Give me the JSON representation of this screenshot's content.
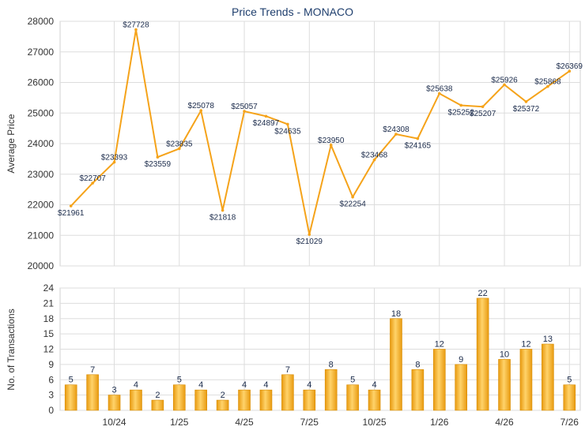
{
  "chart_data": [
    {
      "type": "line",
      "title": "Price Trends - MONACO",
      "ylabel": "Average Price",
      "ylim": [
        20000,
        28000
      ],
      "yticks": [
        20000,
        21000,
        22000,
        23000,
        24000,
        25000,
        26000,
        27000,
        28000
      ],
      "line_color": "#f5a31a",
      "values": [
        21961,
        22707,
        23393,
        27728,
        23559,
        23835,
        25078,
        21818,
        25057,
        24897,
        24635,
        21029,
        23950,
        22254,
        23468,
        24308,
        24165,
        25638,
        25252,
        25207,
        25926,
        25372,
        25868,
        26369
      ],
      "value_labels": [
        "$21961",
        "$22707",
        "$23393",
        "$27728",
        "$23559",
        "$23835",
        "$25078",
        "$21818",
        "$25057",
        "$24897",
        "$24635",
        "$21029",
        "$23950",
        "$22254",
        "$23468",
        "$24308",
        "$24165",
        "$25638",
        "$25252",
        "$25207",
        "$25926",
        "$25372",
        "$25868",
        "$26369"
      ]
    },
    {
      "type": "bar",
      "ylabel": "No. of Transactions",
      "ylim": [
        0,
        24
      ],
      "yticks": [
        0,
        3,
        6,
        9,
        12,
        15,
        18,
        21,
        24
      ],
      "bar_color": "#f5b020",
      "values": [
        5,
        7,
        3,
        4,
        2,
        5,
        4,
        2,
        4,
        4,
        7,
        4,
        8,
        5,
        4,
        18,
        8,
        12,
        9,
        22,
        10,
        12,
        13,
        5
      ],
      "x_tick_labels": [
        "10/24",
        "1/25",
        "4/25",
        "7/25",
        "10/25",
        "1/26",
        "4/26",
        "7/26"
      ]
    }
  ]
}
